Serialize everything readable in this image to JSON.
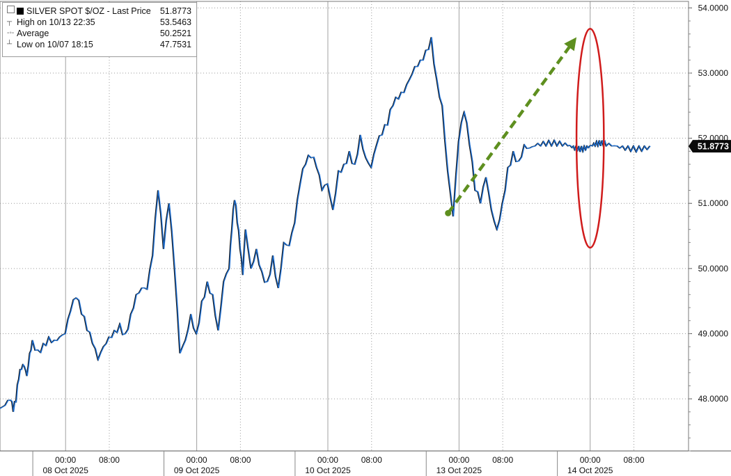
{
  "chart_data": {
    "type": "line",
    "title": "",
    "xlabel": "",
    "ylabel": "",
    "ylim": [
      47.2,
      54.1
    ],
    "y_ticks": [
      "54.0000",
      "53.0000",
      "52.0000",
      "51.0000",
      "50.0000",
      "49.0000",
      "48.0000"
    ],
    "y_tick_values": [
      54,
      53,
      52,
      51,
      50,
      49,
      48
    ],
    "x_labels_time": [
      "00:00",
      "08:00",
      "00:00",
      "08:00",
      "00:00",
      "08:00",
      "00:00",
      "08:00",
      "00:00",
      "08:00"
    ],
    "x_labels_date": [
      "08 Oct 2025",
      "09 Oct 2025",
      "10 Oct 2025",
      "13 Oct 2025",
      "14 Oct 2025"
    ],
    "x_tick_hours": [
      0,
      8,
      24,
      32,
      48,
      56,
      72,
      80,
      96,
      104
    ],
    "x_range_hours": [
      -12,
      114
    ],
    "grid": true,
    "series": [
      {
        "name": "SILVER SPOT $/OZ",
        "color": "#1f6fd1",
        "x_hours": [
          -12,
          -11,
          -10,
          -9.5,
          -9,
          -8.5,
          -8,
          -7.5,
          -7,
          -6.5,
          -6,
          -5,
          -4,
          -3,
          -2,
          -1,
          0,
          1,
          2,
          3,
          4,
          5,
          6,
          7,
          8,
          9,
          10,
          11,
          12,
          13,
          14,
          15,
          16,
          17,
          18,
          19,
          20,
          21,
          22,
          23,
          24,
          25,
          26,
          27,
          28,
          29,
          30,
          30.5,
          31,
          31.5,
          32,
          32.5,
          33,
          34,
          35,
          36,
          37,
          38,
          39,
          40,
          41,
          42,
          43,
          44,
          45,
          46,
          47,
          48,
          49,
          50,
          51,
          52,
          53,
          54,
          55,
          56,
          57,
          58,
          59,
          60,
          61,
          62,
          63,
          64,
          65,
          66,
          67,
          68,
          69,
          70,
          71,
          72,
          73,
          74,
          75,
          76,
          77,
          78,
          79,
          80,
          81,
          82,
          83,
          84,
          85,
          86,
          87,
          88,
          89,
          90,
          91,
          92,
          92.5,
          93,
          93.5,
          94,
          94.5,
          95,
          95.5,
          96,
          96.5,
          97,
          97.5,
          98,
          98.5,
          99,
          100,
          101,
          102,
          103,
          104,
          105,
          106,
          107
        ],
        "values": [
          47.85,
          47.9,
          47.98,
          47.8,
          47.95,
          48.3,
          48.45,
          48.5,
          48.35,
          48.7,
          48.9,
          48.75,
          48.85,
          48.95,
          48.9,
          48.95,
          49.0,
          49.35,
          49.55,
          49.3,
          49.05,
          48.85,
          48.6,
          48.8,
          48.95,
          49.05,
          49.15,
          49.0,
          49.3,
          49.6,
          49.7,
          49.68,
          50.2,
          51.2,
          50.3,
          51.0,
          50.0,
          48.7,
          48.9,
          49.3,
          49.0,
          49.5,
          49.8,
          49.6,
          49.05,
          49.8,
          50.0,
          50.6,
          51.05,
          50.7,
          50.3,
          49.9,
          50.6,
          50.0,
          50.3,
          49.95,
          49.8,
          50.2,
          49.7,
          50.4,
          50.35,
          50.7,
          51.3,
          51.6,
          51.7,
          51.55,
          51.2,
          51.3,
          50.9,
          51.5,
          51.6,
          51.8,
          51.6,
          52.05,
          51.7,
          51.55,
          51.9,
          52.05,
          52.2,
          52.5,
          52.6,
          52.7,
          52.9,
          53.1,
          53.2,
          53.35,
          53.55,
          52.9,
          52.5,
          51.5,
          50.8,
          51.95,
          52.4,
          51.9,
          51.2,
          51.0,
          51.4,
          50.9,
          50.6,
          51.0,
          51.55,
          51.8,
          51.65,
          51.9,
          51.85,
          51.88,
          51.88,
          51.88,
          51.88,
          51.88,
          51.88,
          51.88,
          51.88,
          51.88,
          51.88,
          51.88,
          51.88,
          51.88,
          51.88,
          51.88,
          51.88,
          51.88,
          51.88,
          51.88,
          51.88,
          51.88,
          51.88,
          51.88,
          51.88,
          51.88,
          51.88,
          51.88,
          51.88,
          51.88
        ]
      }
    ],
    "last_price_label": "51.8773",
    "last_price": 51.8773,
    "annotations": {
      "arrow_color": "#5e8f1f",
      "arrow_from": {
        "x_hours": 70,
        "value": 50.85
      },
      "arrow_to": {
        "x_hours": 93.5,
        "value": 53.55
      },
      "ellipse_color": "#d01c1c",
      "ellipse_center": {
        "x_hours": 96,
        "value": 52.0
      },
      "ellipse_radius": {
        "hours": 2.5,
        "value": 1.68
      }
    }
  },
  "legend": {
    "title": "SILVER SPOT $/OZ  - Last Price",
    "title_value": "51.8773",
    "high_label": "High on 10/13 22:35",
    "high_value": "53.5463",
    "avg_label": "Average",
    "avg_value": "50.2521",
    "low_label": "Low on 10/07 18:15",
    "low_value": "47.7531"
  }
}
